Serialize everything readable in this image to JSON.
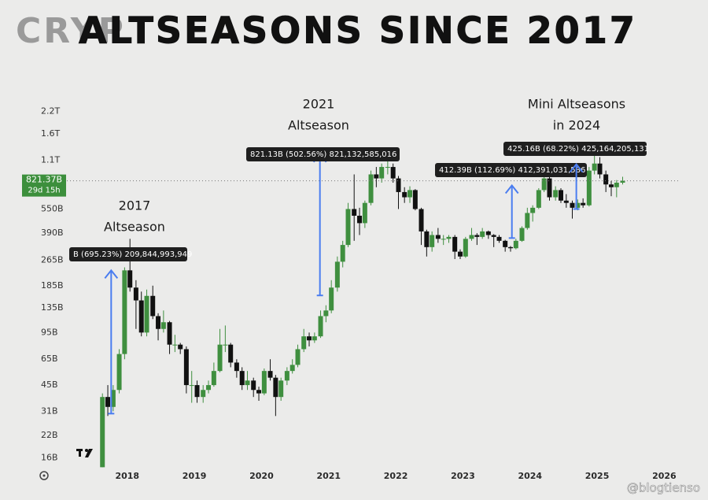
{
  "chart_data": {
    "type": "candlestick",
    "title": "ALTSEASONS SINCE 2017",
    "brand": "CRYP",
    "watermark": "@blogtienso",
    "log_scale": true,
    "grid": false,
    "up_color": "#3f8f3f",
    "down_color": "#111111",
    "ylim": [
      13,
      2650
    ],
    "yticks": [
      {
        "value": 16,
        "label": "16B"
      },
      {
        "value": 22,
        "label": "22B"
      },
      {
        "value": 31,
        "label": "31B"
      },
      {
        "value": 45,
        "label": "45B"
      },
      {
        "value": 65,
        "label": "65B"
      },
      {
        "value": 95,
        "label": "95B"
      },
      {
        "value": 135,
        "label": "135B"
      },
      {
        "value": 185,
        "label": "185B"
      },
      {
        "value": 265,
        "label": "265B"
      },
      {
        "value": 390,
        "label": "390B"
      },
      {
        "value": 550,
        "label": "550B"
      },
      {
        "value": 1100,
        "label": "1.1T"
      },
      {
        "value": 1600,
        "label": "1.6T"
      },
      {
        "value": 2200,
        "label": "2.2T"
      }
    ],
    "xlim": [
      2017.1,
      2026.3
    ],
    "xticks": [
      2018,
      2019,
      2020,
      2021,
      2022,
      2023,
      2024,
      2025,
      2026
    ],
    "last_price": {
      "value": 821.37,
      "label": "821.37B"
    },
    "countdown": "29d 15h",
    "x": [
      2017.63,
      2017.71,
      2017.79,
      2017.88,
      2017.96,
      2018.04,
      2018.13,
      2018.21,
      2018.29,
      2018.38,
      2018.46,
      2018.54,
      2018.63,
      2018.71,
      2018.79,
      2018.88,
      2018.96,
      2019.04,
      2019.13,
      2019.21,
      2019.29,
      2019.38,
      2019.46,
      2019.54,
      2019.63,
      2019.71,
      2019.79,
      2019.88,
      2019.96,
      2020.04,
      2020.13,
      2020.21,
      2020.29,
      2020.38,
      2020.46,
      2020.54,
      2020.63,
      2020.71,
      2020.79,
      2020.88,
      2020.96,
      2021.04,
      2021.13,
      2021.21,
      2021.29,
      2021.38,
      2021.46,
      2021.54,
      2021.63,
      2021.71,
      2021.79,
      2021.88,
      2021.96,
      2022.04,
      2022.13,
      2022.21,
      2022.29,
      2022.38,
      2022.46,
      2022.54,
      2022.63,
      2022.71,
      2022.79,
      2022.88,
      2022.96,
      2023.04,
      2023.13,
      2023.21,
      2023.29,
      2023.38,
      2023.46,
      2023.54,
      2023.63,
      2023.71,
      2023.79,
      2023.88,
      2023.96,
      2024.04,
      2024.13,
      2024.21,
      2024.29,
      2024.38,
      2024.46,
      2024.54,
      2024.63,
      2024.71,
      2024.79,
      2024.88,
      2024.96,
      2025.04,
      2025.13,
      2025.21,
      2025.29,
      2025.38
    ],
    "open": [
      14,
      38,
      33,
      42,
      70,
      230,
      180,
      150,
      95,
      160,
      120,
      100,
      110,
      80,
      80,
      75,
      45,
      45,
      38,
      42,
      45,
      55,
      80,
      80,
      62,
      55,
      45,
      48,
      42,
      40,
      55,
      50,
      38,
      48,
      55,
      60,
      75,
      90,
      85,
      90,
      120,
      130,
      180,
      260,
      330,
      550,
      500,
      450,
      600,
      900,
      850,
      1000,
      1000,
      850,
      700,
      650,
      720,
      550,
      400,
      320,
      380,
      360,
      360,
      370,
      300,
      280,
      360,
      380,
      370,
      400,
      380,
      370,
      350,
      320,
      315,
      350,
      420,
      520,
      560,
      720,
      850,
      650,
      720,
      620,
      600,
      560,
      600,
      580,
      950,
      1050,
      900,
      780,
      750,
      800
    ],
    "high": [
      40,
      45,
      45,
      75,
      240,
      360,
      200,
      170,
      175,
      185,
      125,
      130,
      112,
      92,
      82,
      78,
      55,
      48,
      45,
      48,
      62,
      100,
      105,
      82,
      65,
      58,
      55,
      50,
      44,
      57,
      65,
      52,
      50,
      58,
      65,
      80,
      100,
      95,
      95,
      130,
      140,
      200,
      280,
      350,
      600,
      900,
      560,
      620,
      950,
      1000,
      1050,
      1150,
      1050,
      880,
      750,
      760,
      730,
      560,
      410,
      400,
      420,
      380,
      380,
      380,
      310,
      370,
      420,
      390,
      420,
      405,
      385,
      380,
      355,
      325,
      360,
      430,
      560,
      580,
      740,
      900,
      880,
      760,
      740,
      680,
      620,
      630,
      640,
      1000,
      1250,
      1150,
      950,
      820,
      830,
      870
    ],
    "low": [
      14,
      29,
      31,
      40,
      65,
      170,
      100,
      90,
      90,
      115,
      85,
      95,
      70,
      72,
      70,
      40,
      35,
      35,
      35,
      40,
      44,
      54,
      72,
      58,
      50,
      42,
      42,
      38,
      36,
      39,
      48,
      29,
      36,
      45,
      53,
      58,
      72,
      78,
      82,
      88,
      110,
      125,
      170,
      240,
      320,
      350,
      380,
      420,
      580,
      750,
      800,
      900,
      800,
      550,
      600,
      600,
      540,
      330,
      280,
      300,
      340,
      330,
      340,
      270,
      270,
      275,
      350,
      330,
      360,
      360,
      320,
      340,
      300,
      300,
      310,
      345,
      410,
      460,
      550,
      700,
      620,
      620,
      600,
      560,
      480,
      540,
      560,
      570,
      900,
      850,
      700,
      660,
      650,
      780
    ],
    "close": [
      38,
      33,
      42,
      70,
      230,
      180,
      150,
      95,
      160,
      120,
      100,
      110,
      80,
      80,
      75,
      45,
      45,
      38,
      42,
      45,
      55,
      80,
      80,
      62,
      55,
      45,
      48,
      42,
      40,
      55,
      50,
      38,
      48,
      55,
      60,
      75,
      90,
      85,
      90,
      120,
      130,
      180,
      260,
      330,
      550,
      500,
      450,
      600,
      900,
      850,
      1000,
      1000,
      850,
      700,
      650,
      720,
      550,
      400,
      320,
      380,
      360,
      360,
      370,
      300,
      280,
      360,
      380,
      370,
      400,
      380,
      370,
      350,
      320,
      315,
      350,
      420,
      520,
      560,
      720,
      850,
      650,
      720,
      620,
      600,
      560,
      600,
      580,
      950,
      1050,
      900,
      780,
      750,
      800,
      821
    ],
    "arrows": [
      {
        "x": 2017.76,
        "from": 30,
        "to": 230,
        "label": "B (695.23%) 209,844,993,949"
      },
      {
        "x": 2020.87,
        "from": 161,
        "to": 1200,
        "label": "821.13B (502.56%) 821,132,585,016"
      },
      {
        "x": 2023.73,
        "from": 364,
        "to": 769,
        "label": "412.39B (112.69%) 412,391,031,586"
      },
      {
        "x": 2024.69,
        "from": 550,
        "to": 1040,
        "label": "425.16B (68.22%) 425,164,205,131"
      }
    ],
    "annotations": [
      [
        "2017",
        "Altseason"
      ],
      [
        "2021",
        "Altseason"
      ],
      [
        "Mini Altseasons",
        "in 2024"
      ]
    ],
    "arrow_color": "#4a7df0"
  }
}
